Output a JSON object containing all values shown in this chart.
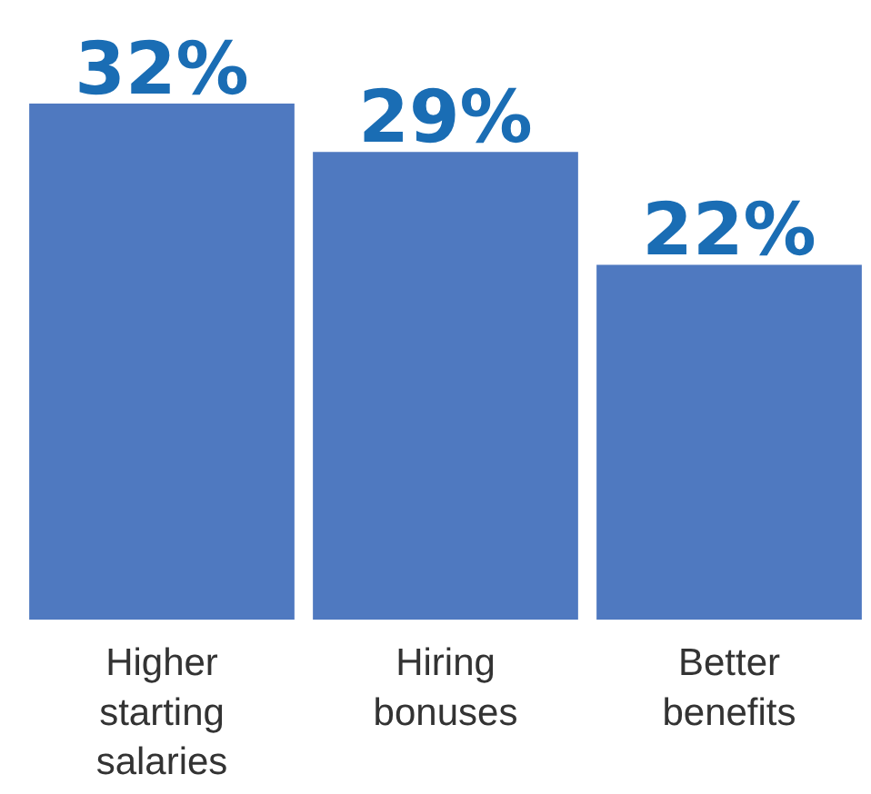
{
  "chart_data": {
    "type": "bar",
    "categories": [
      "Higher starting salaries",
      "Hiring bonuses",
      "Better benefits"
    ],
    "values": [
      32,
      29,
      22
    ],
    "color": "#4f79c0",
    "value_labels": [
      "32%",
      "29%",
      "22%"
    ]
  }
}
